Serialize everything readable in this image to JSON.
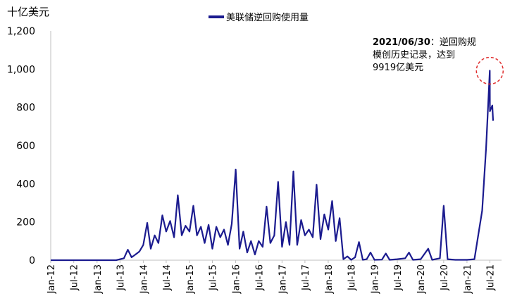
{
  "chart_data": {
    "type": "line",
    "unit_label": "十亿美元",
    "legend": "美联储逆回购使用量",
    "series": [
      {
        "name": "美联储逆回购使用量",
        "color": "#1b1b8f",
        "points": [
          [
            "2012-01",
            0
          ],
          [
            "2012-07",
            0
          ],
          [
            "2013-01",
            0
          ],
          [
            "2013-06",
            0
          ],
          [
            "2013-08",
            10
          ],
          [
            "2013-09",
            55
          ],
          [
            "2013-10",
            15
          ],
          [
            "2013-11",
            30
          ],
          [
            "2013-12",
            45
          ],
          [
            "2014-01",
            80
          ],
          [
            "2014-02",
            195
          ],
          [
            "2014-03",
            60
          ],
          [
            "2014-04",
            130
          ],
          [
            "2014-05",
            90
          ],
          [
            "2014-06",
            235
          ],
          [
            "2014-07",
            150
          ],
          [
            "2014-08",
            205
          ],
          [
            "2014-09",
            120
          ],
          [
            "2014-10",
            340
          ],
          [
            "2014-11",
            130
          ],
          [
            "2014-12",
            180
          ],
          [
            "2015-01",
            150
          ],
          [
            "2015-02",
            285
          ],
          [
            "2015-03",
            130
          ],
          [
            "2015-04",
            175
          ],
          [
            "2015-05",
            90
          ],
          [
            "2015-06",
            185
          ],
          [
            "2015-07",
            60
          ],
          [
            "2015-08",
            175
          ],
          [
            "2015-09",
            120
          ],
          [
            "2015-10",
            160
          ],
          [
            "2015-11",
            80
          ],
          [
            "2015-12",
            190
          ],
          [
            "2016-01",
            475
          ],
          [
            "2016-02",
            60
          ],
          [
            "2016-03",
            150
          ],
          [
            "2016-04",
            40
          ],
          [
            "2016-05",
            100
          ],
          [
            "2016-06",
            30
          ],
          [
            "2016-07",
            100
          ],
          [
            "2016-08",
            70
          ],
          [
            "2016-09",
            280
          ],
          [
            "2016-10",
            90
          ],
          [
            "2016-11",
            130
          ],
          [
            "2016-12",
            410
          ],
          [
            "2017-01",
            70
          ],
          [
            "2017-02",
            200
          ],
          [
            "2017-03",
            80
          ],
          [
            "2017-04",
            465
          ],
          [
            "2017-05",
            80
          ],
          [
            "2017-06",
            210
          ],
          [
            "2017-07",
            130
          ],
          [
            "2017-08",
            160
          ],
          [
            "2017-09",
            120
          ],
          [
            "2017-10",
            395
          ],
          [
            "2017-11",
            110
          ],
          [
            "2017-12",
            240
          ],
          [
            "2018-01",
            160
          ],
          [
            "2018-02",
            310
          ],
          [
            "2018-03",
            100
          ],
          [
            "2018-04",
            220
          ],
          [
            "2018-05",
            5
          ],
          [
            "2018-06",
            20
          ],
          [
            "2018-07",
            2
          ],
          [
            "2018-08",
            15
          ],
          [
            "2018-09",
            95
          ],
          [
            "2018-10",
            2
          ],
          [
            "2018-11",
            5
          ],
          [
            "2018-12",
            40
          ],
          [
            "2019-01",
            2
          ],
          [
            "2019-03",
            3
          ],
          [
            "2019-04",
            35
          ],
          [
            "2019-05",
            2
          ],
          [
            "2019-07",
            5
          ],
          [
            "2019-09",
            10
          ],
          [
            "2019-10",
            40
          ],
          [
            "2019-11",
            2
          ],
          [
            "2020-01",
            5
          ],
          [
            "2020-03",
            60
          ],
          [
            "2020-04",
            2
          ],
          [
            "2020-06",
            10
          ],
          [
            "2020-07",
            285
          ],
          [
            "2020-08",
            5
          ],
          [
            "2020-10",
            2
          ],
          [
            "2021-01",
            2
          ],
          [
            "2021-03",
            5
          ],
          [
            "2021-04",
            135
          ],
          [
            "2021-05",
            260
          ],
          [
            "2021-06",
            590
          ],
          [
            "2021-06-30",
            991.9
          ],
          [
            "2021-07",
            780
          ],
          [
            "2021-07-20",
            810
          ],
          [
            "2021-07-26",
            730
          ]
        ]
      }
    ],
    "y_ticks": [
      "0",
      "200",
      "400",
      "600",
      "800",
      "1,000",
      "1,200"
    ],
    "y_values": [
      0,
      200,
      400,
      600,
      800,
      1000,
      1200
    ],
    "ylim": [
      0,
      1200
    ],
    "x_ticks": [
      "Jan-12",
      "Jul-12",
      "Jan-13",
      "Jul-13",
      "Jan-14",
      "Jul-14",
      "Jan-15",
      "Jul-15",
      "Jan-16",
      "Jul-16",
      "Jan-17",
      "Jul-17",
      "Jan-18",
      "Jul-18",
      "Jan-19",
      "Jul-19",
      "Jan-20",
      "Jul-20",
      "Jan-21",
      "Jul-21"
    ],
    "annotation": {
      "bold": "2021/06/30",
      "text": "：逆回购规模创历史记录，达到9919亿美元",
      "target": [
        "2021-06-30",
        991.9
      ]
    },
    "grid": false,
    "legend_position": "top-center"
  }
}
